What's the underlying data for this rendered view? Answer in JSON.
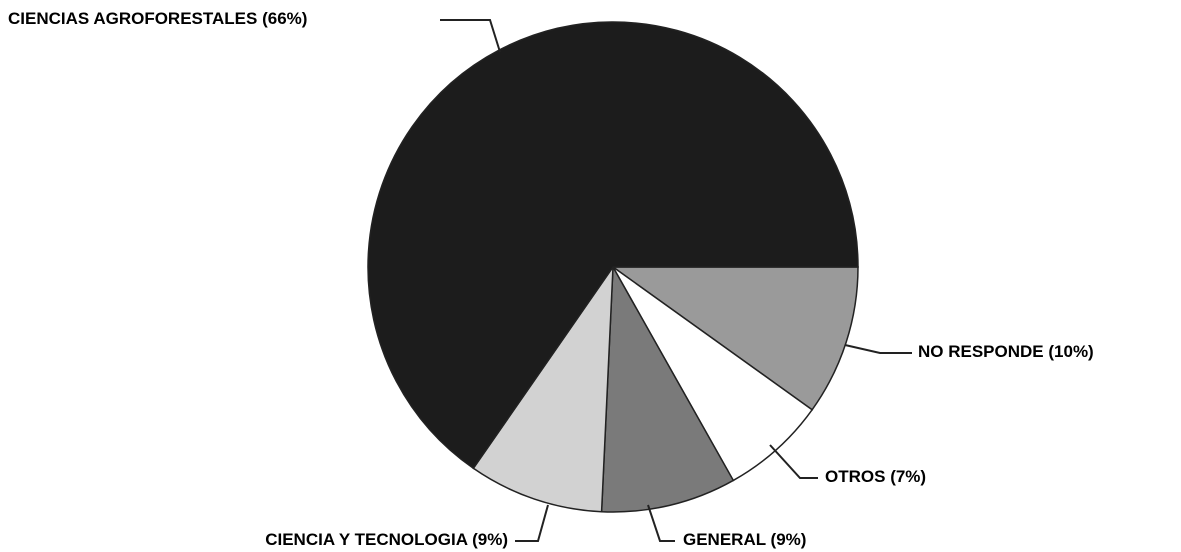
{
  "chart_data": {
    "type": "pie",
    "categories": [
      "NO RESPONDE",
      "OTROS",
      "GENERAL",
      "CIENCIA Y TECNOLOGIA",
      "CIENCIAS AGROFORESTALES"
    ],
    "values": [
      10,
      7,
      9,
      9,
      66
    ],
    "value_labels": [
      "(10%)",
      "(7%)",
      "(9%)",
      "(9%)",
      "(66%)"
    ],
    "colors": [
      "#9a9a9a",
      "#ffffff",
      "#7a7a7a",
      "#d2d2d2",
      "#1c1c1c"
    ]
  }
}
